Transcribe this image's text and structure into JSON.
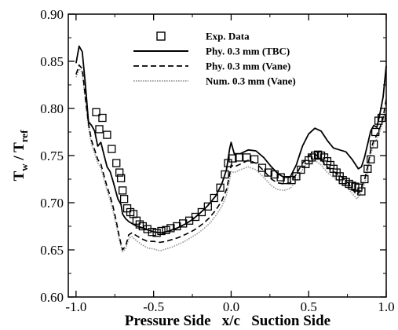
{
  "chart_data": {
    "type": "line",
    "xlabel": "Pressure Side   x/c   Suction Side",
    "ylabel_main": "T",
    "ylabel_sub1": "w",
    "ylabel_mid": " / T",
    "ylabel_sub2": "ref",
    "xlim": [
      -1.05,
      1.0
    ],
    "ylim": [
      0.6,
      0.9
    ],
    "xticks": [
      -1.0,
      -0.5,
      0.0,
      0.5,
      1.0
    ],
    "xtick_labels": [
      "-1.0",
      "-0.5",
      "0.0",
      "0.5",
      "1.0"
    ],
    "yticks": [
      0.6,
      0.65,
      0.7,
      0.75,
      0.8,
      0.85,
      0.9
    ],
    "ytick_labels": [
      "0.60",
      "0.65",
      "0.70",
      "0.75",
      "0.80",
      "0.85",
      "0.90"
    ],
    "legend_position": "top-center",
    "series": [
      {
        "name": "Exp. Data",
        "style": "square-markers",
        "color": "#000000",
        "points": [
          [
            -0.87,
            0.796
          ],
          [
            -0.85,
            0.778
          ],
          [
            -0.83,
            0.79
          ],
          [
            -0.8,
            0.772
          ],
          [
            -0.77,
            0.757
          ],
          [
            -0.74,
            0.742
          ],
          [
            -0.72,
            0.732
          ],
          [
            -0.71,
            0.726
          ],
          [
            -0.7,
            0.713
          ],
          [
            -0.69,
            0.704
          ],
          [
            -0.67,
            0.694
          ],
          [
            -0.65,
            0.69
          ],
          [
            -0.63,
            0.688
          ],
          [
            -0.61,
            0.681
          ],
          [
            -0.59,
            0.677
          ],
          [
            -0.57,
            0.675
          ],
          [
            -0.54,
            0.672
          ],
          [
            -0.51,
            0.669
          ],
          [
            -0.48,
            0.668
          ],
          [
            -0.45,
            0.67
          ],
          [
            -0.42,
            0.671
          ],
          [
            -0.39,
            0.673
          ],
          [
            -0.35,
            0.675
          ],
          [
            -0.31,
            0.678
          ],
          [
            -0.27,
            0.681
          ],
          [
            -0.23,
            0.685
          ],
          [
            -0.19,
            0.69
          ],
          [
            -0.15,
            0.696
          ],
          [
            -0.11,
            0.705
          ],
          [
            -0.07,
            0.716
          ],
          [
            -0.04,
            0.73
          ],
          [
            -0.02,
            0.742
          ],
          [
            0.01,
            0.747
          ],
          [
            0.05,
            0.748
          ],
          [
            0.1,
            0.748
          ],
          [
            0.15,
            0.746
          ],
          [
            0.2,
            0.737
          ],
          [
            0.24,
            0.732
          ],
          [
            0.28,
            0.73
          ],
          [
            0.32,
            0.727
          ],
          [
            0.36,
            0.724
          ],
          [
            0.39,
            0.724
          ],
          [
            0.42,
            0.728
          ],
          [
            0.45,
            0.735
          ],
          [
            0.48,
            0.741
          ],
          [
            0.5,
            0.745
          ],
          [
            0.52,
            0.748
          ],
          [
            0.54,
            0.75
          ],
          [
            0.56,
            0.751
          ],
          [
            0.58,
            0.75
          ],
          [
            0.6,
            0.748
          ],
          [
            0.62,
            0.744
          ],
          [
            0.64,
            0.74
          ],
          [
            0.66,
            0.736
          ],
          [
            0.68,
            0.732
          ],
          [
            0.7,
            0.728
          ],
          [
            0.72,
            0.724
          ],
          [
            0.74,
            0.722
          ],
          [
            0.76,
            0.72
          ],
          [
            0.78,
            0.718
          ],
          [
            0.8,
            0.717
          ],
          [
            0.82,
            0.716
          ],
          [
            0.84,
            0.712
          ],
          [
            0.86,
            0.725
          ],
          [
            0.88,
            0.736
          ],
          [
            0.9,
            0.746
          ],
          [
            0.92,
            0.762
          ],
          [
            0.93,
            0.775
          ],
          [
            0.95,
            0.787
          ],
          [
            0.97,
            0.79
          ]
        ]
      },
      {
        "name": "Phy. 0.3 mm (TBC)",
        "style": "solid",
        "color": "#000000",
        "points": [
          [
            -1.0,
            0.848
          ],
          [
            -0.98,
            0.866
          ],
          [
            -0.96,
            0.86
          ],
          [
            -0.94,
            0.826
          ],
          [
            -0.92,
            0.786
          ],
          [
            -0.9,
            0.782
          ],
          [
            -0.88,
            0.776
          ],
          [
            -0.86,
            0.76
          ],
          [
            -0.84,
            0.764
          ],
          [
            -0.82,
            0.751
          ],
          [
            -0.8,
            0.738
          ],
          [
            -0.78,
            0.733
          ],
          [
            -0.76,
            0.722
          ],
          [
            -0.74,
            0.71
          ],
          [
            -0.73,
            0.704
          ],
          [
            -0.71,
            0.698
          ],
          [
            -0.7,
            0.688
          ],
          [
            -0.68,
            0.683
          ],
          [
            -0.66,
            0.68
          ],
          [
            -0.64,
            0.678
          ],
          [
            -0.62,
            0.676
          ],
          [
            -0.6,
            0.675
          ],
          [
            -0.55,
            0.672
          ],
          [
            -0.5,
            0.669
          ],
          [
            -0.45,
            0.668
          ],
          [
            -0.4,
            0.67
          ],
          [
            -0.35,
            0.673
          ],
          [
            -0.3,
            0.677
          ],
          [
            -0.25,
            0.682
          ],
          [
            -0.2,
            0.689
          ],
          [
            -0.15,
            0.697
          ],
          [
            -0.1,
            0.707
          ],
          [
            -0.06,
            0.72
          ],
          [
            -0.03,
            0.735
          ],
          [
            -0.01,
            0.757
          ],
          [
            0.0,
            0.764
          ],
          [
            0.02,
            0.752
          ],
          [
            0.06,
            0.752
          ],
          [
            0.11,
            0.756
          ],
          [
            0.16,
            0.755
          ],
          [
            0.21,
            0.748
          ],
          [
            0.26,
            0.738
          ],
          [
            0.3,
            0.731
          ],
          [
            0.34,
            0.727
          ],
          [
            0.38,
            0.727
          ],
          [
            0.42,
            0.74
          ],
          [
            0.46,
            0.76
          ],
          [
            0.5,
            0.773
          ],
          [
            0.54,
            0.779
          ],
          [
            0.58,
            0.776
          ],
          [
            0.62,
            0.766
          ],
          [
            0.66,
            0.758
          ],
          [
            0.7,
            0.756
          ],
          [
            0.74,
            0.754
          ],
          [
            0.78,
            0.746
          ],
          [
            0.82,
            0.736
          ],
          [
            0.84,
            0.738
          ],
          [
            0.86,
            0.748
          ],
          [
            0.88,
            0.762
          ],
          [
            0.9,
            0.776
          ],
          [
            0.92,
            0.782
          ],
          [
            0.94,
            0.78
          ],
          [
            0.96,
            0.795
          ],
          [
            0.98,
            0.812
          ],
          [
            1.0,
            0.845
          ]
        ]
      },
      {
        "name": "Phy. 0.3 mm (Vane)",
        "style": "dashed",
        "color": "#000000",
        "points": [
          [
            -1.0,
            0.836
          ],
          [
            -0.98,
            0.846
          ],
          [
            -0.96,
            0.842
          ],
          [
            -0.94,
            0.812
          ],
          [
            -0.92,
            0.784
          ],
          [
            -0.9,
            0.766
          ],
          [
            -0.88,
            0.756
          ],
          [
            -0.86,
            0.746
          ],
          [
            -0.84,
            0.741
          ],
          [
            -0.82,
            0.729
          ],
          [
            -0.8,
            0.717
          ],
          [
            -0.78,
            0.707
          ],
          [
            -0.76,
            0.695
          ],
          [
            -0.74,
            0.68
          ],
          [
            -0.72,
            0.663
          ],
          [
            -0.7,
            0.65
          ],
          [
            -0.68,
            0.654
          ],
          [
            -0.66,
            0.666
          ],
          [
            -0.64,
            0.668
          ],
          [
            -0.62,
            0.666
          ],
          [
            -0.58,
            0.662
          ],
          [
            -0.54,
            0.659
          ],
          [
            -0.5,
            0.659
          ],
          [
            -0.46,
            0.658
          ],
          [
            -0.42,
            0.659
          ],
          [
            -0.38,
            0.661
          ],
          [
            -0.34,
            0.663
          ],
          [
            -0.3,
            0.666
          ],
          [
            -0.26,
            0.669
          ],
          [
            -0.22,
            0.673
          ],
          [
            -0.18,
            0.678
          ],
          [
            -0.14,
            0.684
          ],
          [
            -0.1,
            0.692
          ],
          [
            -0.06,
            0.702
          ],
          [
            -0.03,
            0.714
          ],
          [
            -0.01,
            0.73
          ],
          [
            0.0,
            0.74
          ],
          [
            0.02,
            0.738
          ],
          [
            0.06,
            0.741
          ],
          [
            0.11,
            0.745
          ],
          [
            0.16,
            0.742
          ],
          [
            0.21,
            0.734
          ],
          [
            0.26,
            0.725
          ],
          [
            0.3,
            0.721
          ],
          [
            0.34,
            0.72
          ],
          [
            0.38,
            0.721
          ],
          [
            0.42,
            0.73
          ],
          [
            0.46,
            0.742
          ],
          [
            0.5,
            0.75
          ],
          [
            0.54,
            0.752
          ],
          [
            0.58,
            0.746
          ],
          [
            0.62,
            0.738
          ],
          [
            0.66,
            0.733
          ],
          [
            0.7,
            0.729
          ],
          [
            0.74,
            0.724
          ],
          [
            0.78,
            0.715
          ],
          [
            0.81,
            0.708
          ],
          [
            0.83,
            0.712
          ],
          [
            0.86,
            0.724
          ],
          [
            0.88,
            0.738
          ],
          [
            0.9,
            0.756
          ],
          [
            0.92,
            0.766
          ],
          [
            0.94,
            0.772
          ],
          [
            0.96,
            0.78
          ],
          [
            0.98,
            0.79
          ],
          [
            1.0,
            0.81
          ]
        ]
      },
      {
        "name": "Num. 0.3 mm (Vane)",
        "style": "dotted",
        "color": "#9a9a9a",
        "points": [
          [
            -1.0,
            0.833
          ],
          [
            -0.98,
            0.842
          ],
          [
            -0.96,
            0.838
          ],
          [
            -0.94,
            0.808
          ],
          [
            -0.92,
            0.78
          ],
          [
            -0.9,
            0.762
          ],
          [
            -0.88,
            0.752
          ],
          [
            -0.86,
            0.742
          ],
          [
            -0.84,
            0.737
          ],
          [
            -0.82,
            0.725
          ],
          [
            -0.8,
            0.713
          ],
          [
            -0.78,
            0.703
          ],
          [
            -0.76,
            0.69
          ],
          [
            -0.74,
            0.676
          ],
          [
            -0.72,
            0.66
          ],
          [
            -0.7,
            0.648
          ],
          [
            -0.68,
            0.651
          ],
          [
            -0.66,
            0.662
          ],
          [
            -0.64,
            0.664
          ],
          [
            -0.62,
            0.661
          ],
          [
            -0.58,
            0.656
          ],
          [
            -0.54,
            0.652
          ],
          [
            -0.5,
            0.651
          ],
          [
            -0.46,
            0.649
          ],
          [
            -0.42,
            0.651
          ],
          [
            -0.38,
            0.653
          ],
          [
            -0.34,
            0.656
          ],
          [
            -0.3,
            0.659
          ],
          [
            -0.26,
            0.663
          ],
          [
            -0.22,
            0.667
          ],
          [
            -0.18,
            0.672
          ],
          [
            -0.14,
            0.678
          ],
          [
            -0.1,
            0.686
          ],
          [
            -0.06,
            0.696
          ],
          [
            -0.03,
            0.708
          ],
          [
            -0.01,
            0.724
          ],
          [
            0.0,
            0.733
          ],
          [
            0.02,
            0.732
          ],
          [
            0.06,
            0.735
          ],
          [
            0.11,
            0.738
          ],
          [
            0.16,
            0.735
          ],
          [
            0.21,
            0.727
          ],
          [
            0.26,
            0.718
          ],
          [
            0.3,
            0.714
          ],
          [
            0.34,
            0.713
          ],
          [
            0.38,
            0.715
          ],
          [
            0.42,
            0.723
          ],
          [
            0.46,
            0.735
          ],
          [
            0.5,
            0.743
          ],
          [
            0.54,
            0.745
          ],
          [
            0.58,
            0.74
          ],
          [
            0.62,
            0.732
          ],
          [
            0.66,
            0.727
          ],
          [
            0.7,
            0.723
          ],
          [
            0.74,
            0.718
          ],
          [
            0.78,
            0.71
          ],
          [
            0.81,
            0.704
          ],
          [
            0.83,
            0.708
          ],
          [
            0.86,
            0.72
          ],
          [
            0.88,
            0.733
          ],
          [
            0.9,
            0.751
          ],
          [
            0.92,
            0.762
          ],
          [
            0.94,
            0.768
          ],
          [
            0.96,
            0.776
          ],
          [
            0.98,
            0.786
          ],
          [
            1.0,
            0.806
          ]
        ]
      }
    ]
  }
}
